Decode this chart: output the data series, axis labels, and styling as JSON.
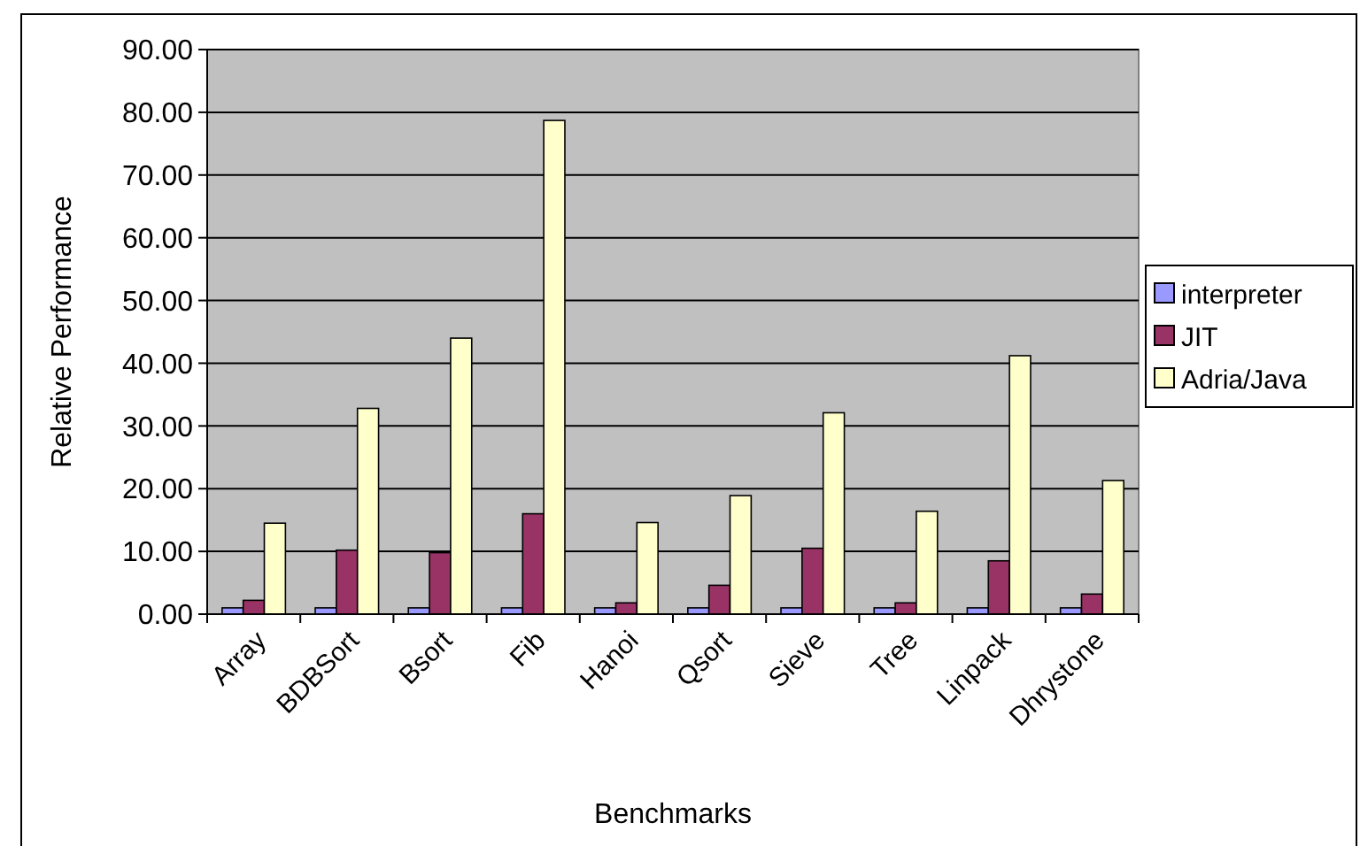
{
  "chart_data": {
    "type": "bar",
    "xlabel": "Benchmarks",
    "ylabel": "Relative Performance",
    "categories": [
      "Array",
      "BDBSort",
      "Bsort",
      "Fib",
      "Hanoi",
      "Qsort",
      "Sieve",
      "Tree",
      "Linpack",
      "Dhrystone"
    ],
    "series": [
      {
        "name": "interpreter",
        "color": "#9999ff",
        "values": [
          1,
          1,
          1,
          1,
          1,
          1,
          1,
          1,
          1,
          1
        ]
      },
      {
        "name": "JIT",
        "color": "#993366",
        "values": [
          2.2,
          10.2,
          9.8,
          16,
          1.8,
          4.6,
          10.5,
          1.8,
          8.5,
          3.2
        ]
      },
      {
        "name": "Adria/Java",
        "color": "#ffffcc",
        "values": [
          14.5,
          32.8,
          44,
          78.7,
          14.6,
          18.9,
          32.1,
          16.4,
          41.2,
          21.3
        ]
      }
    ],
    "ylim": [
      0,
      90
    ],
    "yticks": [
      {
        "value": 0,
        "label": "0.00"
      },
      {
        "value": 10,
        "label": "10.00"
      },
      {
        "value": 20,
        "label": "20.00"
      },
      {
        "value": 30,
        "label": "30.00"
      },
      {
        "value": 40,
        "label": "40.00"
      },
      {
        "value": 50,
        "label": "50.00"
      },
      {
        "value": 60,
        "label": "60.00"
      },
      {
        "value": 70,
        "label": "70.00"
      },
      {
        "value": 80,
        "label": "80.00"
      },
      {
        "value": 90,
        "label": "90.00"
      }
    ],
    "grid": "y",
    "legend": "right"
  }
}
